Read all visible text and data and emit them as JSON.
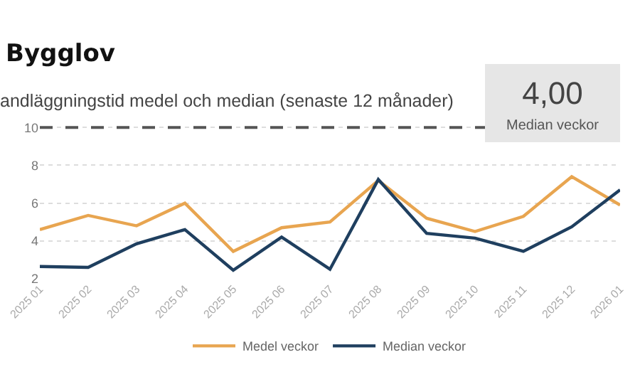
{
  "chart_data": [
    {
      "type": "line",
      "title": "Bygglov",
      "subtitle": "andläggningstid medel och median (senaste 12 månader)",
      "categories": [
        "2025 01",
        "2025 02",
        "2025 03",
        "2025 04",
        "2025 05",
        "2025 06",
        "2025 07",
        "2025 08",
        "2025 09",
        "2025 10",
        "2025 11",
        "2025 12",
        "2026 01"
      ],
      "series": [
        {
          "name": "Medel veckor",
          "color": "#e8a550",
          "values": [
            4.6,
            5.35,
            4.8,
            6.0,
            3.45,
            4.7,
            5.0,
            7.2,
            5.2,
            4.5,
            5.3,
            7.4,
            5.9
          ]
        },
        {
          "name": "Median veckor",
          "color": "#1f3f5f",
          "values": [
            2.65,
            2.6,
            3.85,
            4.6,
            2.45,
            4.2,
            2.5,
            7.25,
            4.4,
            4.15,
            3.45,
            4.75,
            6.7
          ]
        }
      ],
      "ylim": [
        2,
        10.2
      ],
      "yticks": [
        2,
        4,
        6,
        8,
        10
      ],
      "grid": "y",
      "legend": "bottom",
      "line_style": "solid",
      "ref_lines": [
        {
          "axis": "y",
          "value": 10,
          "color": "#555555",
          "line_style": "dashed"
        }
      ]
    },
    {
      "type": "other",
      "annotations": [
        "4,00",
        "Median veckor"
      ]
    }
  ]
}
